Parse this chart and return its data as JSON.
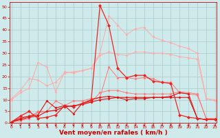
{
  "x": [
    0,
    1,
    2,
    3,
    4,
    5,
    6,
    7,
    8,
    9,
    10,
    11,
    12,
    13,
    14,
    15,
    16,
    17,
    18,
    19,
    20,
    21,
    22,
    23
  ],
  "series": [
    {
      "color": "#ffaaaa",
      "linewidth": 0.7,
      "markersize": 2.0,
      "values": [
        10.5,
        14.0,
        19.0,
        18.5,
        16.0,
        17.5,
        21.5,
        22.0,
        22.5,
        23.5,
        29.0,
        30.5,
        29.5,
        29.0,
        30.5,
        30.5,
        30.0,
        30.0,
        29.5,
        28.5,
        28.0,
        27.5,
        10.5,
        10.0
      ]
    },
    {
      "color": "#ffaaaa",
      "linewidth": 0.7,
      "markersize": 2.0,
      "values": [
        10.0,
        13.0,
        15.0,
        26.0,
        24.0,
        13.5,
        22.0,
        21.5,
        22.5,
        23.5,
        30.0,
        46.0,
        42.0,
        38.0,
        40.5,
        41.0,
        37.0,
        35.5,
        34.5,
        33.0,
        32.0,
        30.0,
        10.5,
        9.5
      ]
    },
    {
      "color": "#ff7777",
      "linewidth": 0.7,
      "markersize": 2.0,
      "values": [
        0.5,
        2.5,
        3.0,
        4.5,
        5.0,
        9.5,
        7.5,
        9.5,
        9.5,
        10.5,
        11.0,
        24.0,
        19.5,
        19.5,
        19.0,
        19.5,
        19.0,
        17.5,
        17.5,
        13.0,
        12.5,
        12.0,
        2.0,
        2.0
      ]
    },
    {
      "color": "#ff7777",
      "linewidth": 0.7,
      "markersize": 2.0,
      "values": [
        0.5,
        1.0,
        2.0,
        5.0,
        5.0,
        5.5,
        7.0,
        7.5,
        8.0,
        9.0,
        13.0,
        14.0,
        14.0,
        13.0,
        12.5,
        12.5,
        12.5,
        12.5,
        12.5,
        13.5,
        13.0,
        12.5,
        2.0,
        1.5
      ]
    },
    {
      "color": "#dd1111",
      "linewidth": 0.8,
      "markersize": 2.0,
      "values": [
        0.5,
        2.0,
        3.0,
        3.5,
        9.5,
        6.5,
        7.5,
        4.0,
        8.5,
        10.0,
        11.0,
        11.5,
        11.0,
        10.0,
        10.5,
        10.5,
        11.0,
        11.0,
        11.5,
        13.0,
        12.5,
        2.0,
        1.5,
        1.5
      ]
    },
    {
      "color": "#dd1111",
      "linewidth": 0.8,
      "markersize": 2.0,
      "values": [
        0.5,
        1.5,
        2.5,
        3.0,
        5.0,
        5.5,
        7.0,
        7.5,
        8.0,
        9.0,
        10.0,
        10.5,
        11.0,
        11.0,
        11.0,
        11.0,
        11.0,
        11.0,
        11.0,
        11.0,
        11.0,
        2.0,
        1.5,
        1.5
      ]
    },
    {
      "color": "#ee2222",
      "linewidth": 0.9,
      "markersize": 2.5,
      "values": [
        0.5,
        3.0,
        5.0,
        2.0,
        2.5,
        3.5,
        7.5,
        7.0,
        8.5,
        9.5,
        50.5,
        42.0,
        23.5,
        19.5,
        20.5,
        20.5,
        18.0,
        17.5,
        17.0,
        3.5,
        2.5,
        2.0,
        1.5,
        1.5
      ]
    }
  ],
  "xlim": [
    -0.2,
    23.2
  ],
  "ylim": [
    0,
    52
  ],
  "yticks": [
    0,
    5,
    10,
    15,
    20,
    25,
    30,
    35,
    40,
    45,
    50
  ],
  "xticks": [
    0,
    1,
    2,
    3,
    4,
    5,
    6,
    7,
    8,
    9,
    10,
    11,
    12,
    13,
    14,
    15,
    16,
    17,
    18,
    19,
    20,
    21,
    22,
    23
  ],
  "xlabel": "Vent moyen/en rafales ( km/h )",
  "background_color": "#ceeaea",
  "grid_color": "#a0c4c4",
  "tick_color": "#cc0000",
  "label_color": "#cc0000",
  "tick_fontsize": 4.5,
  "xlabel_fontsize": 6.5
}
